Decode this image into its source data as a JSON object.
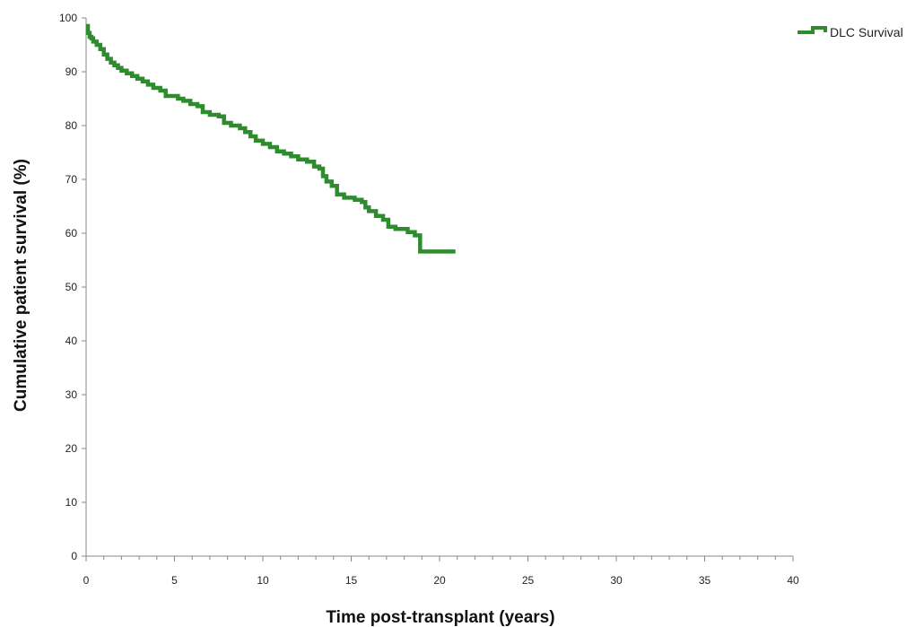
{
  "chart_data": {
    "type": "line",
    "step": true,
    "xlabel": "Time post-transplant (years)",
    "ylabel": "Cumulative patient survival (%)",
    "xlim": [
      0,
      40
    ],
    "ylim": [
      0,
      100
    ],
    "xticks": [
      0,
      5,
      10,
      15,
      20,
      25,
      30,
      35,
      40
    ],
    "yticks": [
      0,
      10,
      20,
      30,
      40,
      50,
      60,
      70,
      80,
      90,
      100
    ],
    "grid": false,
    "legend": "top-right",
    "series": [
      {
        "name": "DLC Survival",
        "color": "#2e8b2e",
        "x": [
          0,
          0.1,
          0.2,
          0.3,
          0.4,
          0.6,
          0.8,
          1.0,
          1.2,
          1.4,
          1.6,
          1.8,
          2.0,
          2.3,
          2.6,
          2.9,
          3.2,
          3.5,
          3.8,
          4.2,
          4.5,
          5.2,
          5.5,
          5.9,
          6.3,
          6.6,
          7.0,
          7.5,
          7.8,
          8.2,
          8.7,
          9.0,
          9.3,
          9.6,
          10.0,
          10.4,
          10.8,
          11.2,
          11.6,
          12.0,
          12.5,
          12.9,
          13.2,
          13.4,
          13.6,
          13.9,
          14.2,
          14.6,
          15.2,
          15.6,
          15.8,
          16.0,
          16.4,
          16.8,
          17.1,
          17.5,
          18.2,
          18.6,
          18.9,
          20.9
        ],
        "y": [
          98.5,
          97.2,
          96.5,
          96.2,
          95.6,
          95.0,
          94.2,
          93.2,
          92.4,
          91.7,
          91.2,
          90.7,
          90.2,
          89.7,
          89.2,
          88.7,
          88.2,
          87.6,
          87.0,
          86.5,
          85.5,
          85.0,
          84.6,
          84.0,
          83.6,
          82.5,
          82.0,
          81.7,
          80.5,
          80.0,
          79.5,
          78.8,
          78.0,
          77.2,
          76.6,
          76.0,
          75.2,
          74.8,
          74.3,
          73.7,
          73.3,
          72.4,
          72.0,
          70.6,
          69.6,
          68.8,
          67.2,
          66.6,
          66.2,
          65.8,
          64.8,
          64.1,
          63.2,
          62.5,
          61.2,
          60.8,
          60.2,
          59.6,
          56.6,
          56.6
        ]
      }
    ]
  }
}
